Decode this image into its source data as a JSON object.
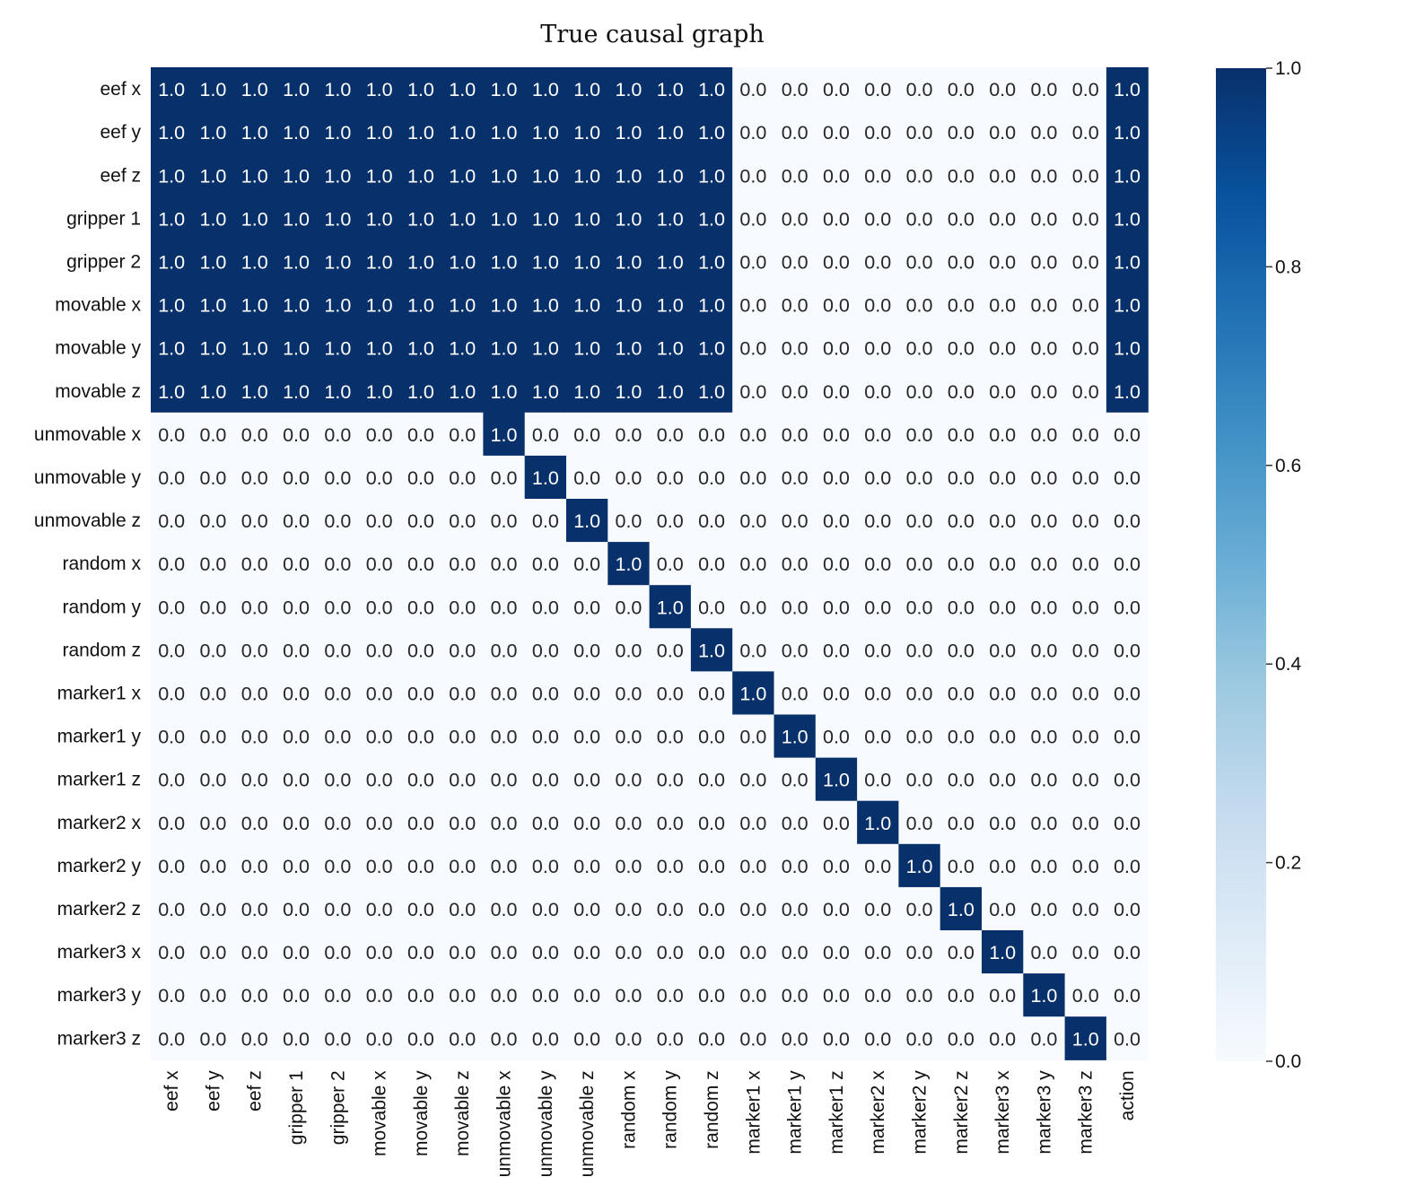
{
  "chart_data": {
    "type": "heatmap",
    "title": "True causal graph",
    "row_labels": [
      "eef x",
      "eef y",
      "eef z",
      "gripper 1",
      "gripper 2",
      "movable x",
      "movable y",
      "movable z",
      "unmovable x",
      "unmovable y",
      "unmovable z",
      "random x",
      "random y",
      "random z",
      "marker1 x",
      "marker1 y",
      "marker1 z",
      "marker2 x",
      "marker2 y",
      "marker2 z",
      "marker3 x",
      "marker3 y",
      "marker3 z"
    ],
    "col_labels": [
      "eef x",
      "eef y",
      "eef z",
      "gripper 1",
      "gripper 2",
      "movable x",
      "movable y",
      "movable z",
      "unmovable x",
      "unmovable y",
      "unmovable z",
      "random x",
      "random y",
      "random z",
      "marker1 x",
      "marker1 y",
      "marker1 z",
      "marker2 x",
      "marker2 y",
      "marker2 z",
      "marker3 x",
      "marker3 y",
      "marker3 z",
      "action"
    ],
    "values": [
      [
        1,
        1,
        1,
        1,
        1,
        1,
        1,
        1,
        1,
        1,
        1,
        1,
        1,
        1,
        0,
        0,
        0,
        0,
        0,
        0,
        0,
        0,
        0,
        1
      ],
      [
        1,
        1,
        1,
        1,
        1,
        1,
        1,
        1,
        1,
        1,
        1,
        1,
        1,
        1,
        0,
        0,
        0,
        0,
        0,
        0,
        0,
        0,
        0,
        1
      ],
      [
        1,
        1,
        1,
        1,
        1,
        1,
        1,
        1,
        1,
        1,
        1,
        1,
        1,
        1,
        0,
        0,
        0,
        0,
        0,
        0,
        0,
        0,
        0,
        1
      ],
      [
        1,
        1,
        1,
        1,
        1,
        1,
        1,
        1,
        1,
        1,
        1,
        1,
        1,
        1,
        0,
        0,
        0,
        0,
        0,
        0,
        0,
        0,
        0,
        1
      ],
      [
        1,
        1,
        1,
        1,
        1,
        1,
        1,
        1,
        1,
        1,
        1,
        1,
        1,
        1,
        0,
        0,
        0,
        0,
        0,
        0,
        0,
        0,
        0,
        1
      ],
      [
        1,
        1,
        1,
        1,
        1,
        1,
        1,
        1,
        1,
        1,
        1,
        1,
        1,
        1,
        0,
        0,
        0,
        0,
        0,
        0,
        0,
        0,
        0,
        1
      ],
      [
        1,
        1,
        1,
        1,
        1,
        1,
        1,
        1,
        1,
        1,
        1,
        1,
        1,
        1,
        0,
        0,
        0,
        0,
        0,
        0,
        0,
        0,
        0,
        1
      ],
      [
        1,
        1,
        1,
        1,
        1,
        1,
        1,
        1,
        1,
        1,
        1,
        1,
        1,
        1,
        0,
        0,
        0,
        0,
        0,
        0,
        0,
        0,
        0,
        1
      ],
      [
        0,
        0,
        0,
        0,
        0,
        0,
        0,
        0,
        1,
        0,
        0,
        0,
        0,
        0,
        0,
        0,
        0,
        0,
        0,
        0,
        0,
        0,
        0,
        0
      ],
      [
        0,
        0,
        0,
        0,
        0,
        0,
        0,
        0,
        0,
        1,
        0,
        0,
        0,
        0,
        0,
        0,
        0,
        0,
        0,
        0,
        0,
        0,
        0,
        0
      ],
      [
        0,
        0,
        0,
        0,
        0,
        0,
        0,
        0,
        0,
        0,
        1,
        0,
        0,
        0,
        0,
        0,
        0,
        0,
        0,
        0,
        0,
        0,
        0,
        0
      ],
      [
        0,
        0,
        0,
        0,
        0,
        0,
        0,
        0,
        0,
        0,
        0,
        1,
        0,
        0,
        0,
        0,
        0,
        0,
        0,
        0,
        0,
        0,
        0,
        0
      ],
      [
        0,
        0,
        0,
        0,
        0,
        0,
        0,
        0,
        0,
        0,
        0,
        0,
        1,
        0,
        0,
        0,
        0,
        0,
        0,
        0,
        0,
        0,
        0,
        0
      ],
      [
        0,
        0,
        0,
        0,
        0,
        0,
        0,
        0,
        0,
        0,
        0,
        0,
        0,
        1,
        0,
        0,
        0,
        0,
        0,
        0,
        0,
        0,
        0,
        0
      ],
      [
        0,
        0,
        0,
        0,
        0,
        0,
        0,
        0,
        0,
        0,
        0,
        0,
        0,
        0,
        1,
        0,
        0,
        0,
        0,
        0,
        0,
        0,
        0,
        0
      ],
      [
        0,
        0,
        0,
        0,
        0,
        0,
        0,
        0,
        0,
        0,
        0,
        0,
        0,
        0,
        0,
        1,
        0,
        0,
        0,
        0,
        0,
        0,
        0,
        0
      ],
      [
        0,
        0,
        0,
        0,
        0,
        0,
        0,
        0,
        0,
        0,
        0,
        0,
        0,
        0,
        0,
        0,
        1,
        0,
        0,
        0,
        0,
        0,
        0,
        0
      ],
      [
        0,
        0,
        0,
        0,
        0,
        0,
        0,
        0,
        0,
        0,
        0,
        0,
        0,
        0,
        0,
        0,
        0,
        1,
        0,
        0,
        0,
        0,
        0,
        0
      ],
      [
        0,
        0,
        0,
        0,
        0,
        0,
        0,
        0,
        0,
        0,
        0,
        0,
        0,
        0,
        0,
        0,
        0,
        0,
        1,
        0,
        0,
        0,
        0,
        0
      ],
      [
        0,
        0,
        0,
        0,
        0,
        0,
        0,
        0,
        0,
        0,
        0,
        0,
        0,
        0,
        0,
        0,
        0,
        0,
        0,
        1,
        0,
        0,
        0,
        0
      ],
      [
        0,
        0,
        0,
        0,
        0,
        0,
        0,
        0,
        0,
        0,
        0,
        0,
        0,
        0,
        0,
        0,
        0,
        0,
        0,
        0,
        1,
        0,
        0,
        0
      ],
      [
        0,
        0,
        0,
        0,
        0,
        0,
        0,
        0,
        0,
        0,
        0,
        0,
        0,
        0,
        0,
        0,
        0,
        0,
        0,
        0,
        0,
        1,
        0,
        0
      ],
      [
        0,
        0,
        0,
        0,
        0,
        0,
        0,
        0,
        0,
        0,
        0,
        0,
        0,
        0,
        0,
        0,
        0,
        0,
        0,
        0,
        0,
        0,
        1,
        0
      ]
    ],
    "value_format": "0.0",
    "colormap": "Blues",
    "vmin": 0.0,
    "vmax": 1.0,
    "colorbar_ticks": [
      "0.0",
      "0.2",
      "0.4",
      "0.6",
      "0.8",
      "1.0"
    ],
    "colorbar_position": "right",
    "grid": false
  }
}
